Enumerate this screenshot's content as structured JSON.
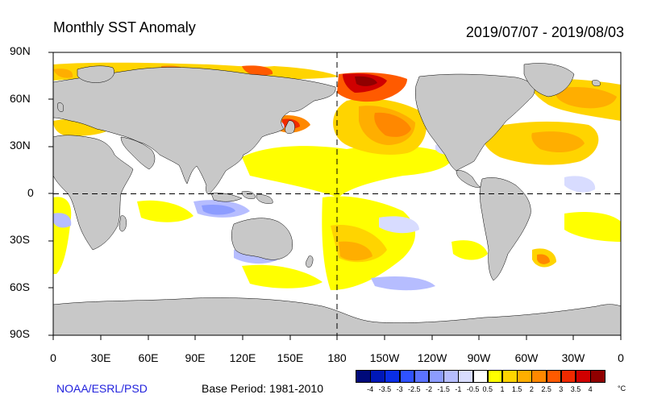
{
  "header": {
    "title": "Monthly SST Anomaly",
    "period": "2019/07/07 - 2019/08/03"
  },
  "axes": {
    "lat_labels": [
      "90N",
      "60N",
      "30N",
      "0",
      "30S",
      "60S",
      "90S"
    ],
    "lon_labels": [
      "0",
      "30E",
      "60E",
      "90E",
      "120E",
      "150E",
      "180",
      "150W",
      "120W",
      "90W",
      "60W",
      "30W",
      "0"
    ]
  },
  "footer": {
    "credit": "NOAA/ESRL/PSD",
    "base_period": "Base Period: 1981-2010"
  },
  "colorbar": {
    "ticks": [
      "-4",
      "-3.5",
      "-3",
      "-2.5",
      "-2",
      "-1.5",
      "-1",
      "-0.5",
      "0.5",
      "1",
      "1.5",
      "2",
      "2.5",
      "3",
      "3.5",
      "4"
    ],
    "unit": "°C",
    "colors": [
      "#000a7a",
      "#0018b8",
      "#0a2ee6",
      "#2f52ff",
      "#5b72ff",
      "#8c9cff",
      "#b6bdff",
      "#d8dcff",
      "#ffffff",
      "#ffff00",
      "#ffd400",
      "#ffae00",
      "#ff8800",
      "#ff5a00",
      "#f02a00",
      "#d00000",
      "#900000"
    ]
  },
  "colors": {
    "land": "#c8c8c8",
    "ocean": "#ffffff"
  }
}
